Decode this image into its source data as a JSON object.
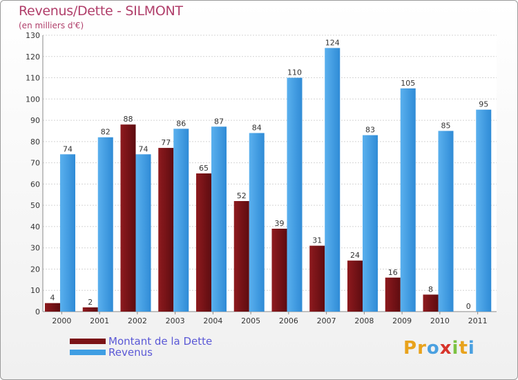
{
  "title": "Revenus/Dette - SILMONT",
  "subtitle": "(en milliers d'€)",
  "logo": {
    "letters": [
      "P",
      "r",
      "o",
      "x",
      "i",
      "t",
      "i"
    ],
    "colors": [
      "#e8a21c",
      "#e8a21c",
      "#4aa0e0",
      "#d7342b",
      "#7cc242",
      "#e8a21c",
      "#4aa0e0"
    ]
  },
  "colors": {
    "dette": "#7a1216",
    "revenus": "#3f9ee3",
    "title": "#b03e6a",
    "legend_text": "#5a58d6"
  },
  "chart_data": {
    "type": "bar",
    "categories": [
      "2000",
      "2001",
      "2002",
      "2003",
      "2004",
      "2005",
      "2006",
      "2007",
      "2008",
      "2009",
      "2010",
      "2011"
    ],
    "series": [
      {
        "name": "Montant de la Dette",
        "values": [
          4,
          2,
          88,
          77,
          65,
          52,
          39,
          31,
          24,
          16,
          8,
          0
        ]
      },
      {
        "name": "Revenus",
        "values": [
          74,
          82,
          74,
          86,
          87,
          84,
          110,
          124,
          83,
          105,
          85,
          95
        ]
      }
    ],
    "ylim": [
      0,
      130
    ],
    "yticks": [
      0,
      10,
      20,
      30,
      40,
      50,
      60,
      70,
      80,
      90,
      100,
      110,
      120,
      130
    ],
    "grid": true,
    "legend_position": "bottom-left"
  }
}
